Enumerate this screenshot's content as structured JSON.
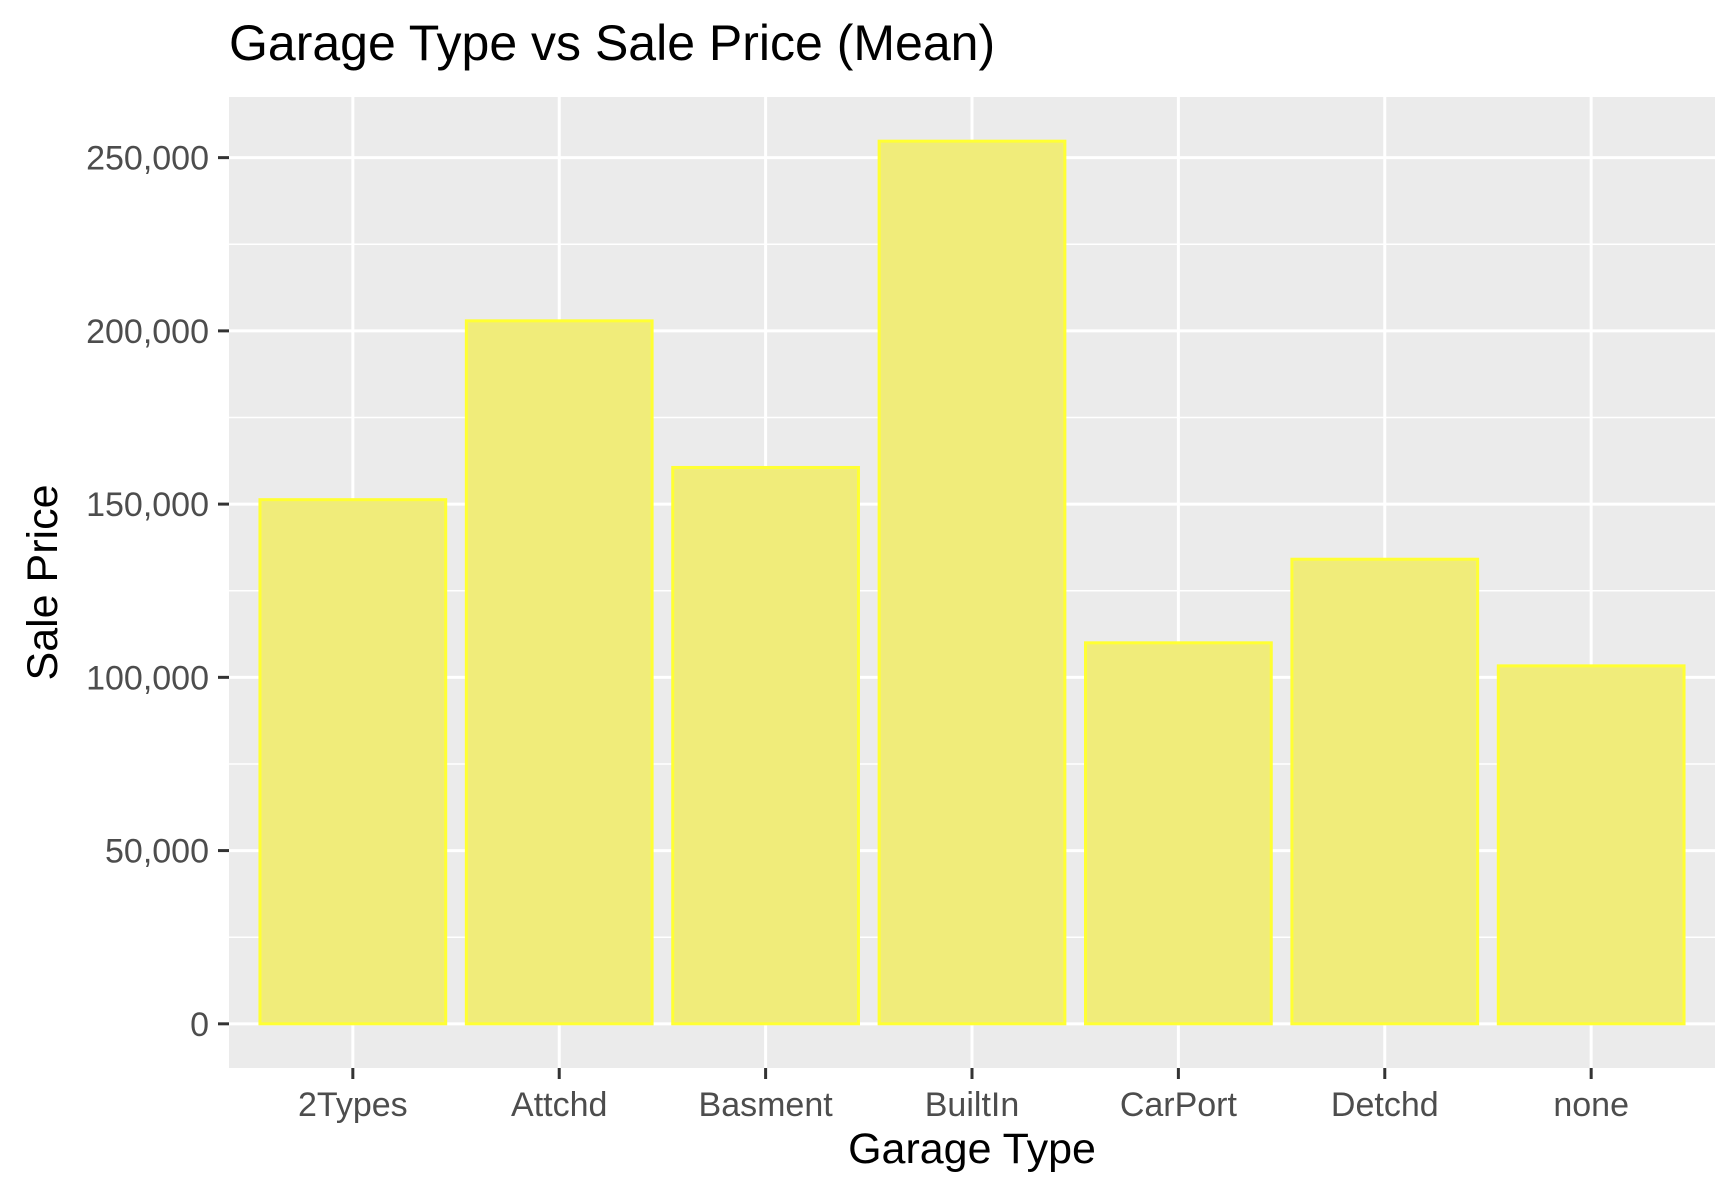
{
  "chart_data": {
    "type": "bar",
    "title": "Garage Type vs Sale Price (Mean)",
    "xlabel": "Garage Type",
    "ylabel": "Sale Price",
    "categories": [
      "2Types",
      "Attchd",
      "Basment",
      "BuiltIn",
      "CarPort",
      "Detchd",
      "none"
    ],
    "values": [
      151283,
      202893,
      160571,
      254752,
      109962,
      134091,
      103317
    ],
    "ylim": [
      -12750,
      267500
    ],
    "yticks": [
      0,
      50000,
      100000,
      150000,
      200000,
      250000
    ],
    "ytick_labels": [
      "0",
      "50,000",
      "100,000",
      "150,000",
      "200,000",
      "250,000"
    ],
    "grid": true,
    "colors": {
      "bar_fill": "#f0ec7a",
      "bar_stroke": "#ffff33",
      "panel": "#ebebeb",
      "grid": "#ffffff",
      "tick_text": "#4d4d4d",
      "tick_mark": "#333333"
    }
  }
}
